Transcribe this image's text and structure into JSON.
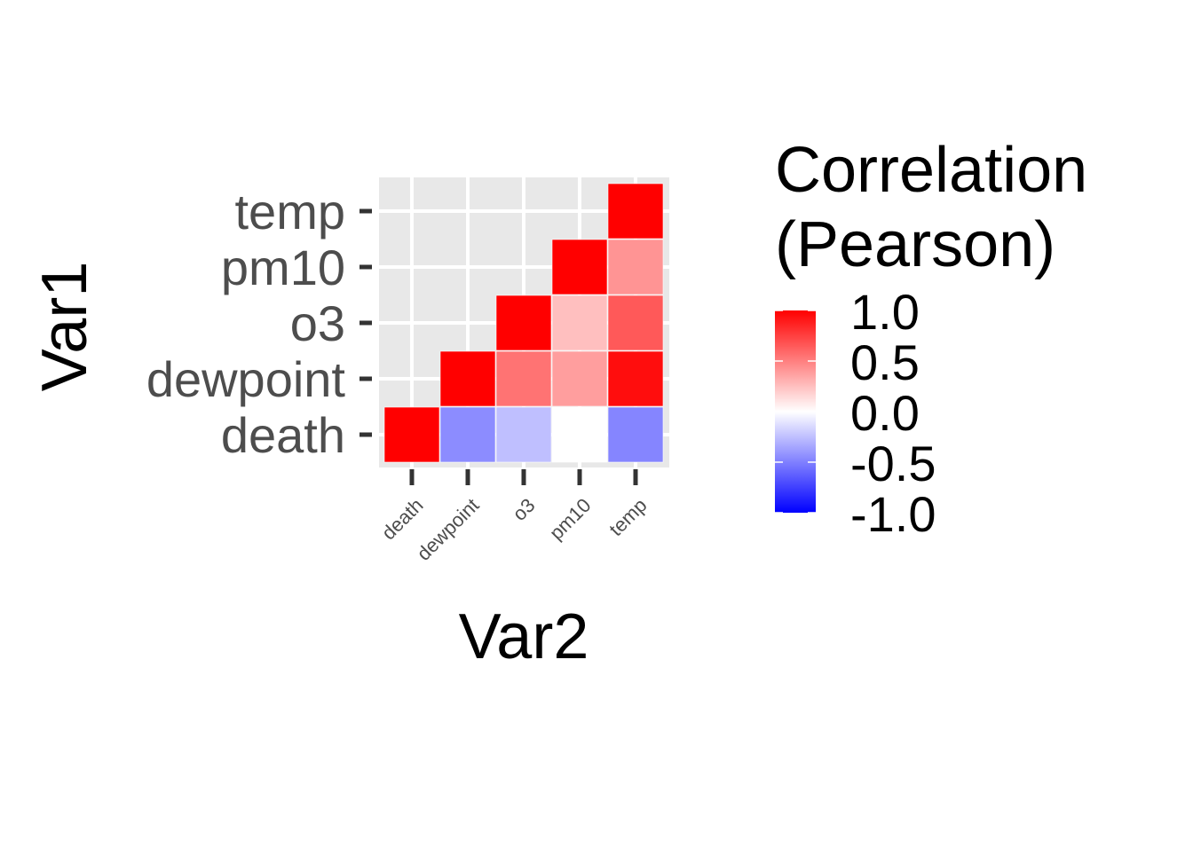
{
  "chart_data": {
    "type": "heatmap",
    "title": "",
    "xlabel": "Var2",
    "ylabel": "Var1",
    "x_categories": [
      "death",
      "dewpoint",
      "o3",
      "pm10",
      "temp"
    ],
    "y_categories": [
      "death",
      "dewpoint",
      "o3",
      "pm10",
      "temp"
    ],
    "cells": [
      {
        "x": "death",
        "y": "death",
        "value": 1.0
      },
      {
        "x": "dewpoint",
        "y": "death",
        "value": -0.45
      },
      {
        "x": "o3",
        "y": "death",
        "value": -0.25
      },
      {
        "x": "pm10",
        "y": "death",
        "value": 0.0
      },
      {
        "x": "temp",
        "y": "death",
        "value": -0.48
      },
      {
        "x": "dewpoint",
        "y": "dewpoint",
        "value": 1.0
      },
      {
        "x": "o3",
        "y": "dewpoint",
        "value": 0.55
      },
      {
        "x": "pm10",
        "y": "dewpoint",
        "value": 0.38
      },
      {
        "x": "temp",
        "y": "dewpoint",
        "value": 0.95
      },
      {
        "x": "o3",
        "y": "o3",
        "value": 1.0
      },
      {
        "x": "pm10",
        "y": "o3",
        "value": 0.25
      },
      {
        "x": "temp",
        "y": "o3",
        "value": 0.65
      },
      {
        "x": "pm10",
        "y": "pm10",
        "value": 1.0
      },
      {
        "x": "temp",
        "y": "pm10",
        "value": 0.42
      },
      {
        "x": "temp",
        "y": "temp",
        "value": 1.0
      }
    ],
    "legend": {
      "title_lines": [
        "Correlation",
        "(Pearson)"
      ],
      "ticks": [
        "1.0",
        "0.5",
        "0.0",
        "-0.5",
        "-1.0"
      ],
      "tick_values": [
        1.0,
        0.5,
        0.0,
        -0.5,
        -1.0
      ],
      "limits": [
        -1,
        1
      ],
      "placement": "right"
    },
    "colors": {
      "low": "#0000FF",
      "mid": "#FFFFFF",
      "high": "#FF0000",
      "panel_background": "#E8E8E8",
      "grid": "#FFFFFF",
      "tick_text": "#4D4D4D",
      "title_text": "#000000"
    },
    "grid": true
  }
}
